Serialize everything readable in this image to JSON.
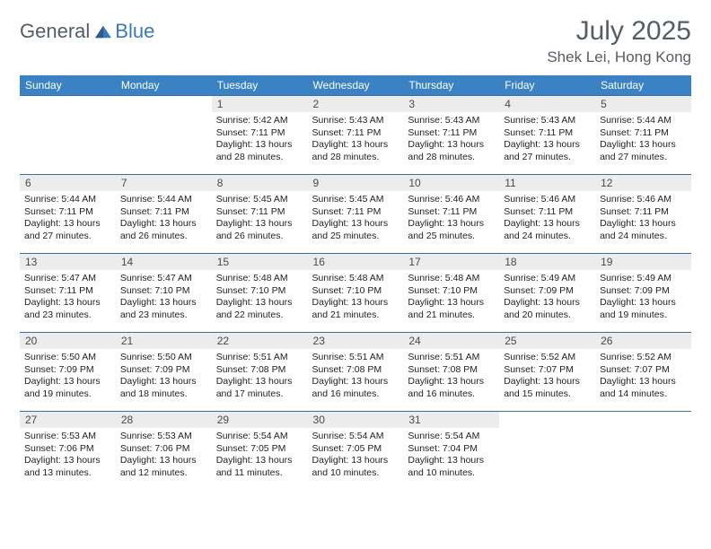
{
  "brand": {
    "general": "General",
    "blue": "Blue"
  },
  "title": "July 2025",
  "location": "Shek Lei, Hong Kong",
  "colors": {
    "header_bg": "#3a82c4",
    "header_text": "#ffffff",
    "daynum_bg": "#ececec",
    "cell_border": "#3a6fa0",
    "title_color": "#555d66",
    "logo_blue": "#3a7ab8"
  },
  "day_headers": [
    "Sunday",
    "Monday",
    "Tuesday",
    "Wednesday",
    "Thursday",
    "Friday",
    "Saturday"
  ],
  "weeks": [
    [
      {
        "empty": true
      },
      {
        "empty": true
      },
      {
        "n": "1",
        "sunrise": "5:42 AM",
        "sunset": "7:11 PM",
        "daylight": "13 hours and 28 minutes."
      },
      {
        "n": "2",
        "sunrise": "5:43 AM",
        "sunset": "7:11 PM",
        "daylight": "13 hours and 28 minutes."
      },
      {
        "n": "3",
        "sunrise": "5:43 AM",
        "sunset": "7:11 PM",
        "daylight": "13 hours and 28 minutes."
      },
      {
        "n": "4",
        "sunrise": "5:43 AM",
        "sunset": "7:11 PM",
        "daylight": "13 hours and 27 minutes."
      },
      {
        "n": "5",
        "sunrise": "5:44 AM",
        "sunset": "7:11 PM",
        "daylight": "13 hours and 27 minutes."
      }
    ],
    [
      {
        "n": "6",
        "sunrise": "5:44 AM",
        "sunset": "7:11 PM",
        "daylight": "13 hours and 27 minutes."
      },
      {
        "n": "7",
        "sunrise": "5:44 AM",
        "sunset": "7:11 PM",
        "daylight": "13 hours and 26 minutes."
      },
      {
        "n": "8",
        "sunrise": "5:45 AM",
        "sunset": "7:11 PM",
        "daylight": "13 hours and 26 minutes."
      },
      {
        "n": "9",
        "sunrise": "5:45 AM",
        "sunset": "7:11 PM",
        "daylight": "13 hours and 25 minutes."
      },
      {
        "n": "10",
        "sunrise": "5:46 AM",
        "sunset": "7:11 PM",
        "daylight": "13 hours and 25 minutes."
      },
      {
        "n": "11",
        "sunrise": "5:46 AM",
        "sunset": "7:11 PM",
        "daylight": "13 hours and 24 minutes."
      },
      {
        "n": "12",
        "sunrise": "5:46 AM",
        "sunset": "7:11 PM",
        "daylight": "13 hours and 24 minutes."
      }
    ],
    [
      {
        "n": "13",
        "sunrise": "5:47 AM",
        "sunset": "7:11 PM",
        "daylight": "13 hours and 23 minutes."
      },
      {
        "n": "14",
        "sunrise": "5:47 AM",
        "sunset": "7:10 PM",
        "daylight": "13 hours and 23 minutes."
      },
      {
        "n": "15",
        "sunrise": "5:48 AM",
        "sunset": "7:10 PM",
        "daylight": "13 hours and 22 minutes."
      },
      {
        "n": "16",
        "sunrise": "5:48 AM",
        "sunset": "7:10 PM",
        "daylight": "13 hours and 21 minutes."
      },
      {
        "n": "17",
        "sunrise": "5:48 AM",
        "sunset": "7:10 PM",
        "daylight": "13 hours and 21 minutes."
      },
      {
        "n": "18",
        "sunrise": "5:49 AM",
        "sunset": "7:09 PM",
        "daylight": "13 hours and 20 minutes."
      },
      {
        "n": "19",
        "sunrise": "5:49 AM",
        "sunset": "7:09 PM",
        "daylight": "13 hours and 19 minutes."
      }
    ],
    [
      {
        "n": "20",
        "sunrise": "5:50 AM",
        "sunset": "7:09 PM",
        "daylight": "13 hours and 19 minutes."
      },
      {
        "n": "21",
        "sunrise": "5:50 AM",
        "sunset": "7:09 PM",
        "daylight": "13 hours and 18 minutes."
      },
      {
        "n": "22",
        "sunrise": "5:51 AM",
        "sunset": "7:08 PM",
        "daylight": "13 hours and 17 minutes."
      },
      {
        "n": "23",
        "sunrise": "5:51 AM",
        "sunset": "7:08 PM",
        "daylight": "13 hours and 16 minutes."
      },
      {
        "n": "24",
        "sunrise": "5:51 AM",
        "sunset": "7:08 PM",
        "daylight": "13 hours and 16 minutes."
      },
      {
        "n": "25",
        "sunrise": "5:52 AM",
        "sunset": "7:07 PM",
        "daylight": "13 hours and 15 minutes."
      },
      {
        "n": "26",
        "sunrise": "5:52 AM",
        "sunset": "7:07 PM",
        "daylight": "13 hours and 14 minutes."
      }
    ],
    [
      {
        "n": "27",
        "sunrise": "5:53 AM",
        "sunset": "7:06 PM",
        "daylight": "13 hours and 13 minutes."
      },
      {
        "n": "28",
        "sunrise": "5:53 AM",
        "sunset": "7:06 PM",
        "daylight": "13 hours and 12 minutes."
      },
      {
        "n": "29",
        "sunrise": "5:54 AM",
        "sunset": "7:05 PM",
        "daylight": "13 hours and 11 minutes."
      },
      {
        "n": "30",
        "sunrise": "5:54 AM",
        "sunset": "7:05 PM",
        "daylight": "13 hours and 10 minutes."
      },
      {
        "n": "31",
        "sunrise": "5:54 AM",
        "sunset": "7:04 PM",
        "daylight": "13 hours and 10 minutes."
      },
      {
        "empty": true
      },
      {
        "empty": true
      }
    ]
  ],
  "labels": {
    "sunrise": "Sunrise:",
    "sunset": "Sunset:",
    "daylight": "Daylight:"
  }
}
